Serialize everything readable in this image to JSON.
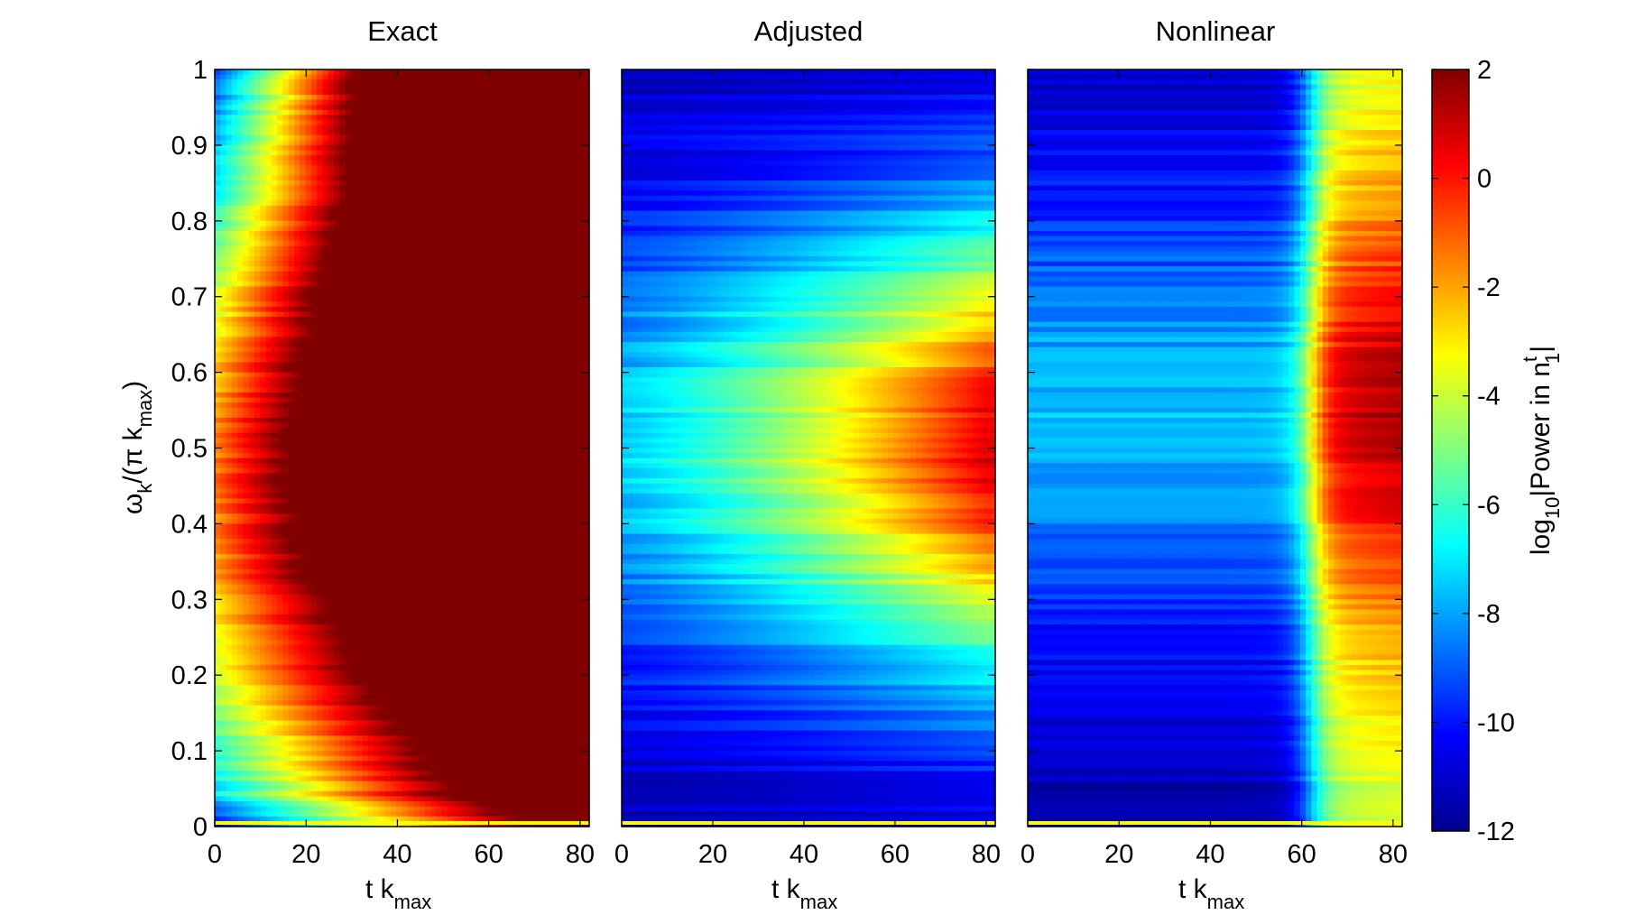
{
  "chart_data": [
    {
      "type": "heatmap",
      "title": "Exact",
      "xlabel": "t k",
      "xlabel_sub": "max",
      "ylabel_main": "ω",
      "ylabel_sub1": "k",
      "ylabel_mid": "/(π k",
      "ylabel_sub2": "max",
      "ylabel_end": ")",
      "xlim": [
        0,
        82
      ],
      "ylim": [
        0,
        1
      ],
      "xticks": [
        "0",
        "20",
        "40",
        "60",
        "80"
      ],
      "yticks": [
        "0",
        "0.1",
        "0.2",
        "0.3",
        "0.4",
        "0.5",
        "0.6",
        "0.7",
        "0.8",
        "0.9",
        "1"
      ]
    },
    {
      "type": "heatmap",
      "title": "Adjusted",
      "xlabel": "t k",
      "xlabel_sub": "max",
      "xlim": [
        0,
        82
      ],
      "ylim": [
        0,
        1
      ],
      "xticks": [
        "0",
        "20",
        "40",
        "60",
        "80"
      ]
    },
    {
      "type": "heatmap",
      "title": "Nonlinear",
      "xlabel": "t k",
      "xlabel_sub": "max",
      "xlim": [
        0,
        82
      ],
      "ylim": [
        0,
        1
      ],
      "xticks": [
        "0",
        "20",
        "40",
        "60",
        "80"
      ]
    }
  ],
  "colorbar": {
    "label_main": "log",
    "label_sub": "10",
    "label_mid": "|Power in n",
    "label_sup": "t",
    "label_sub2": "1",
    "label_end": "|",
    "range": [
      -12,
      2
    ],
    "ticks": [
      "2",
      "0",
      "-2",
      "-4",
      "-6",
      "-8",
      "-10",
      "-12"
    ],
    "colormap": "jet"
  }
}
